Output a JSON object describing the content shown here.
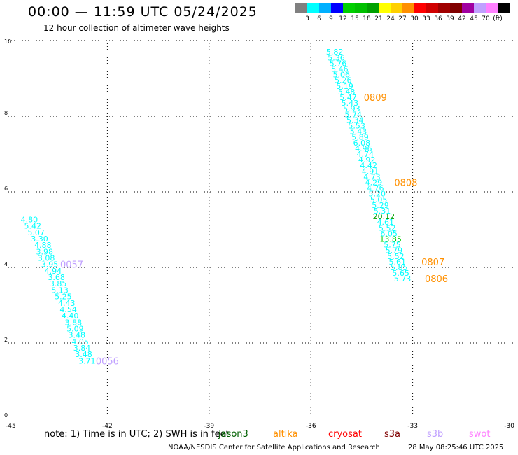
{
  "header": {
    "title": "00:00 — 11:59 UTC 05/24/2025",
    "subtitle": "12 hour collection of altimeter wave heights"
  },
  "color_scale": {
    "colors": [
      "#808080",
      "#00ffff",
      "#00b0ff",
      "#0000ff",
      "#00d000",
      "#00c000",
      "#00a000",
      "#ffff00",
      "#ffd000",
      "#ff9000",
      "#ff0000",
      "#d00000",
      "#a00000",
      "#800000",
      "#a000a0",
      "#c0a0ff",
      "#ff80ff",
      "#000000"
    ],
    "labels": [
      "3",
      "6",
      "9",
      "12",
      "15",
      "18",
      "21",
      "24",
      "27",
      "30",
      "33",
      "36",
      "39",
      "42",
      "45",
      "70",
      "(ft)"
    ]
  },
  "chart_data": {
    "type": "scatter",
    "xlim": [
      -45,
      -30
    ],
    "ylim": [
      0,
      10
    ],
    "x_ticks": [
      "-45",
      "-42",
      "-39",
      "-36",
      "-33",
      "-30"
    ],
    "y_ticks": [
      "0",
      "2",
      "4",
      "6",
      "8",
      "10"
    ],
    "grid": true,
    "series": [
      {
        "name": "0056-0057",
        "color": "#00ffff",
        "points": [
          {
            "x": -44.3,
            "y": 5.27,
            "label": "4.80"
          },
          {
            "x": -44.2,
            "y": 5.1,
            "label": "5.42"
          },
          {
            "x": -44.1,
            "y": 4.93,
            "label": "5.07"
          },
          {
            "x": -44.0,
            "y": 4.76,
            "label": "3.30"
          },
          {
            "x": -43.9,
            "y": 4.59,
            "label": "4.88"
          },
          {
            "x": -43.85,
            "y": 4.42,
            "label": "3.98"
          },
          {
            "x": -43.8,
            "y": 4.25,
            "label": "3.08"
          },
          {
            "x": -43.7,
            "y": 4.08,
            "label": "3.95"
          },
          {
            "x": -43.6,
            "y": 3.91,
            "label": "4.94"
          },
          {
            "x": -43.5,
            "y": 3.74,
            "label": "3.68"
          },
          {
            "x": -43.45,
            "y": 3.57,
            "label": "3.85"
          },
          {
            "x": -43.4,
            "y": 3.4,
            "label": "5.13"
          },
          {
            "x": -43.3,
            "y": 3.23,
            "label": "5.25"
          },
          {
            "x": -43.2,
            "y": 3.06,
            "label": "4.43"
          },
          {
            "x": -43.15,
            "y": 2.89,
            "label": "4.54"
          },
          {
            "x": -43.1,
            "y": 2.72,
            "label": "4.40"
          },
          {
            "x": -43.0,
            "y": 2.55,
            "label": "3.88"
          },
          {
            "x": -42.95,
            "y": 2.38,
            "label": "5.09"
          },
          {
            "x": -42.9,
            "y": 2.21,
            "label": "3.48"
          },
          {
            "x": -42.8,
            "y": 2.04,
            "label": "4.05"
          },
          {
            "x": -42.75,
            "y": 1.87,
            "label": "3.84"
          },
          {
            "x": -42.7,
            "y": 1.7,
            "label": "3.48"
          },
          {
            "x": -42.6,
            "y": 1.53,
            "label": "3.71"
          }
        ]
      },
      {
        "name": "0806-0809",
        "color": "#00ffff",
        "points": [
          {
            "x": -35.3,
            "y": 9.7,
            "label": "5.82"
          },
          {
            "x": -35.25,
            "y": 9.55,
            "label": "5.36"
          },
          {
            "x": -35.2,
            "y": 9.4,
            "label": "5.76"
          },
          {
            "x": -35.15,
            "y": 9.25,
            "label": "5.46"
          },
          {
            "x": -35.1,
            "y": 9.1,
            "label": "5.06"
          },
          {
            "x": -35.05,
            "y": 8.95,
            "label": "5.26"
          },
          {
            "x": -35.0,
            "y": 8.8,
            "label": "5.19"
          },
          {
            "x": -34.95,
            "y": 8.65,
            "label": "5.48"
          },
          {
            "x": -34.9,
            "y": 8.5,
            "label": "5.47"
          },
          {
            "x": -34.85,
            "y": 8.35,
            "label": "5.43"
          },
          {
            "x": -34.8,
            "y": 8.2,
            "label": "5.93"
          },
          {
            "x": -34.75,
            "y": 8.05,
            "label": "5.74"
          },
          {
            "x": -34.7,
            "y": 7.9,
            "label": "5.34"
          },
          {
            "x": -34.65,
            "y": 7.75,
            "label": "5.53"
          },
          {
            "x": -34.6,
            "y": 7.6,
            "label": "5.43"
          },
          {
            "x": -34.55,
            "y": 7.45,
            "label": "5.89"
          },
          {
            "x": -34.5,
            "y": 7.3,
            "label": "6.08"
          },
          {
            "x": -34.45,
            "y": 7.15,
            "label": "4.96"
          },
          {
            "x": -34.4,
            "y": 7.0,
            "label": "4.74"
          },
          {
            "x": -34.35,
            "y": 6.85,
            "label": "4.92"
          },
          {
            "x": -34.3,
            "y": 6.7,
            "label": "4.42"
          },
          {
            "x": -34.25,
            "y": 6.55,
            "label": "4.91"
          },
          {
            "x": -34.2,
            "y": 6.4,
            "label": "4.73"
          },
          {
            "x": -34.15,
            "y": 6.25,
            "label": "4.29"
          },
          {
            "x": -34.1,
            "y": 6.1,
            "label": "4.76"
          },
          {
            "x": -34.05,
            "y": 5.95,
            "label": "5.20"
          },
          {
            "x": -34.0,
            "y": 5.8,
            "label": "5.05"
          },
          {
            "x": -33.95,
            "y": 5.65,
            "label": "5.29"
          },
          {
            "x": -33.9,
            "y": 5.5,
            "label": "5.31"
          },
          {
            "x": -33.85,
            "y": 5.35,
            "label": "20.12",
            "color": "#00a000"
          },
          {
            "x": -33.8,
            "y": 5.2,
            "label": "4.61"
          },
          {
            "x": -33.75,
            "y": 5.05,
            "label": "5.52"
          },
          {
            "x": -33.7,
            "y": 4.9,
            "label": "6.05"
          },
          {
            "x": -33.65,
            "y": 4.75,
            "label": "13.85",
            "color": "#00d000"
          },
          {
            "x": -33.6,
            "y": 4.6,
            "label": "5.75"
          },
          {
            "x": -33.55,
            "y": 4.45,
            "label": "5.79"
          },
          {
            "x": -33.5,
            "y": 4.3,
            "label": "5.52"
          },
          {
            "x": -33.45,
            "y": 4.15,
            "label": "5.61"
          },
          {
            "x": -33.4,
            "y": 4.0,
            "label": "5.85"
          },
          {
            "x": -33.35,
            "y": 3.85,
            "label": "5.65"
          },
          {
            "x": -33.3,
            "y": 3.7,
            "label": "5.73"
          }
        ]
      }
    ],
    "annotations": [
      {
        "text": "0057",
        "x": -43.05,
        "y": 4.08,
        "color": "#c0a0ff"
      },
      {
        "text": "0056",
        "x": -42.0,
        "y": 1.53,
        "color": "#c0a0ff"
      },
      {
        "text": "0809",
        "x": -34.1,
        "y": 8.5,
        "color": "#ff9000"
      },
      {
        "text": "0808",
        "x": -33.2,
        "y": 6.25,
        "color": "#ff9000"
      },
      {
        "text": "0807",
        "x": -32.4,
        "y": 4.15,
        "color": "#ff9000"
      },
      {
        "text": "0806",
        "x": -32.3,
        "y": 3.7,
        "color": "#ff9000"
      }
    ]
  },
  "footer": {
    "note": "note:  1) Time is in UTC; 2) SWH is in feet",
    "missions": [
      {
        "label": "jason3",
        "color": "#006000"
      },
      {
        "label": "altika",
        "color": "#ff9000"
      },
      {
        "label": "cryosat",
        "color": "#ff0000"
      },
      {
        "label": "s3a",
        "color": "#800000"
      },
      {
        "label": "s3b",
        "color": "#c0a0ff"
      },
      {
        "label": "swot",
        "color": "#ff80ff"
      }
    ],
    "credit": "NOAA/NESDIS Center for Satellite Applications and Research",
    "timestamp": "28 May 08:25:46 UTC 2025"
  }
}
